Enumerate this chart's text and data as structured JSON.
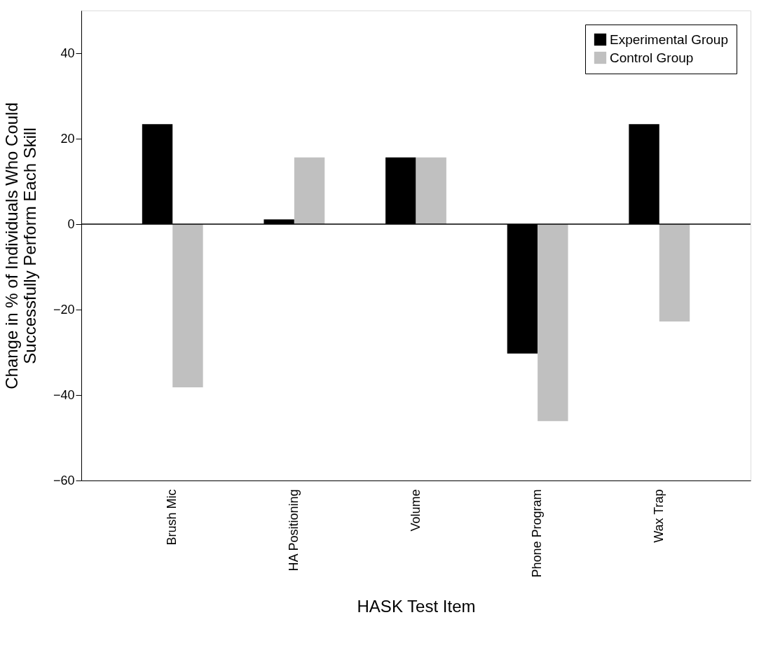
{
  "chart_data": {
    "type": "bar",
    "xlabel": "HASK Test Item",
    "ylabel": "Change in % of Individuals Who Could\nSuccessfully Perform Each Skill",
    "categories": [
      "Brush Mic",
      "HA Positioning",
      "Volume",
      "Phone Program",
      "Wax Trap"
    ],
    "series": [
      {
        "name": "Experimental Group",
        "color": "#000000",
        "values": [
          23.4,
          1.1,
          15.6,
          -30.3,
          23.4
        ]
      },
      {
        "name": "Control Group",
        "color": "#c0c0c0",
        "values": [
          -38.2,
          15.6,
          15.6,
          -46.1,
          -22.8
        ]
      }
    ],
    "ylim": [
      -60,
      50
    ],
    "yticks": [
      -60,
      -40,
      -20,
      0,
      20,
      40
    ],
    "grid": false,
    "legend": "top right",
    "ref_lines": [
      {
        "axis": "y",
        "value": 0,
        "color": "#000000"
      }
    ]
  }
}
